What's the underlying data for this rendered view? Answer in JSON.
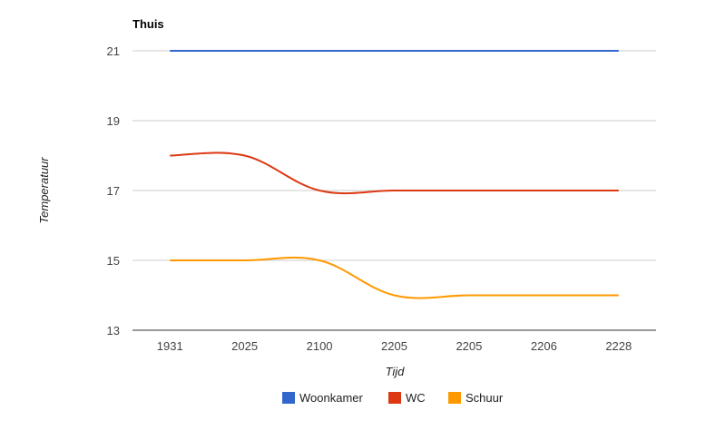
{
  "chart_data": {
    "type": "line",
    "title": "Thuis",
    "xlabel": "Tijd",
    "ylabel": "Temperatuur",
    "categories": [
      "1931",
      "2025",
      "2100",
      "2205",
      "2205",
      "2206",
      "2228"
    ],
    "ylim": [
      13,
      21
    ],
    "yticks": [
      "13",
      "15",
      "17",
      "19",
      "21"
    ],
    "grid": true,
    "legend_position": "bottom",
    "curve": "smooth",
    "series": [
      {
        "name": "Woonkamer",
        "color": "#3366cc",
        "values": [
          21,
          21,
          21,
          21,
          21,
          21,
          21
        ]
      },
      {
        "name": "WC",
        "color": "#dc3912",
        "values": [
          18,
          18,
          17,
          17,
          17,
          17,
          17
        ]
      },
      {
        "name": "Schuur",
        "color": "#ff9900",
        "values": [
          15,
          15,
          15,
          14,
          14,
          14,
          14
        ]
      }
    ]
  }
}
